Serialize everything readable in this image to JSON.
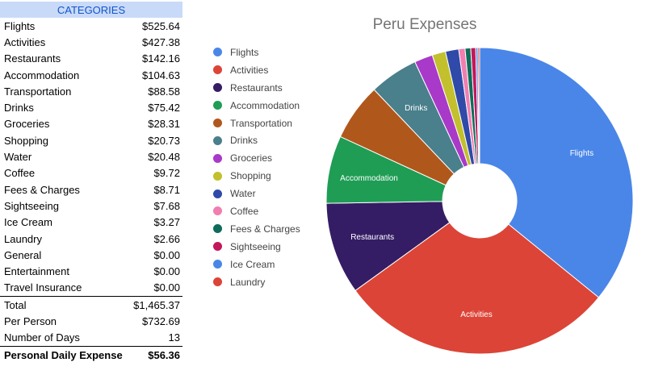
{
  "table": {
    "header": "CATEGORIES",
    "rows": [
      {
        "label": "Flights",
        "value": "$525.64"
      },
      {
        "label": "Activities",
        "value": "$427.38"
      },
      {
        "label": "Restaurants",
        "value": "$142.16"
      },
      {
        "label": "Accommodation",
        "value": "$104.63"
      },
      {
        "label": "Transportation",
        "value": "$88.58"
      },
      {
        "label": "Drinks",
        "value": "$75.42"
      },
      {
        "label": "Groceries",
        "value": "$28.31"
      },
      {
        "label": "Shopping",
        "value": "$20.73"
      },
      {
        "label": "Water",
        "value": "$20.48"
      },
      {
        "label": "Coffee",
        "value": "$9.72"
      },
      {
        "label": "Fees & Charges",
        "value": "$8.71"
      },
      {
        "label": "Sightseeing",
        "value": "$7.68"
      },
      {
        "label": "Ice Cream",
        "value": "$3.27"
      },
      {
        "label": "Laundry",
        "value": "$2.66"
      },
      {
        "label": "General",
        "value": "$0.00"
      },
      {
        "label": "Entertainment",
        "value": "$0.00"
      },
      {
        "label": "Travel Insurance",
        "value": "$0.00"
      }
    ],
    "summary": [
      {
        "label": "Total",
        "value": "$1,465.37"
      },
      {
        "label": "Per Person",
        "value": "$732.69"
      },
      {
        "label": "Number of Days",
        "value": "13"
      }
    ],
    "final": {
      "label": "Personal Daily Expense",
      "value": "$56.36"
    }
  },
  "chart_data": {
    "type": "pie",
    "donut": true,
    "title": "Peru Expenses",
    "legend_position": "left",
    "slices": [
      {
        "label": "Flights",
        "value": 525.64,
        "color": "#4a86e8",
        "show_label": true
      },
      {
        "label": "Activities",
        "value": 427.38,
        "color": "#dc4437",
        "show_label": true
      },
      {
        "label": "Restaurants",
        "value": 142.16,
        "color": "#341d65",
        "show_label": true
      },
      {
        "label": "Accommodation",
        "value": 104.63,
        "color": "#1f9d55",
        "show_label": true
      },
      {
        "label": "Transportation",
        "value": 88.58,
        "color": "#b0581c",
        "show_label": false
      },
      {
        "label": "Drinks",
        "value": 75.42,
        "color": "#4a7f8c",
        "show_label": true
      },
      {
        "label": "Groceries",
        "value": 28.31,
        "color": "#a939c8",
        "show_label": false
      },
      {
        "label": "Shopping",
        "value": 20.73,
        "color": "#c2c02d",
        "show_label": false
      },
      {
        "label": "Water",
        "value": 20.48,
        "color": "#2f4aa8",
        "show_label": false
      },
      {
        "label": "Coffee",
        "value": 9.72,
        "color": "#f07fb0",
        "show_label": false
      },
      {
        "label": "Fees & Charges",
        "value": 8.71,
        "color": "#0f6b5a",
        "show_label": false
      },
      {
        "label": "Sightseeing",
        "value": 7.68,
        "color": "#c2185b",
        "show_label": false
      },
      {
        "label": "Ice Cream",
        "value": 3.27,
        "color": "#4a86e8",
        "show_label": false
      },
      {
        "label": "Laundry",
        "value": 2.66,
        "color": "#dc4437",
        "show_label": false
      }
    ]
  }
}
